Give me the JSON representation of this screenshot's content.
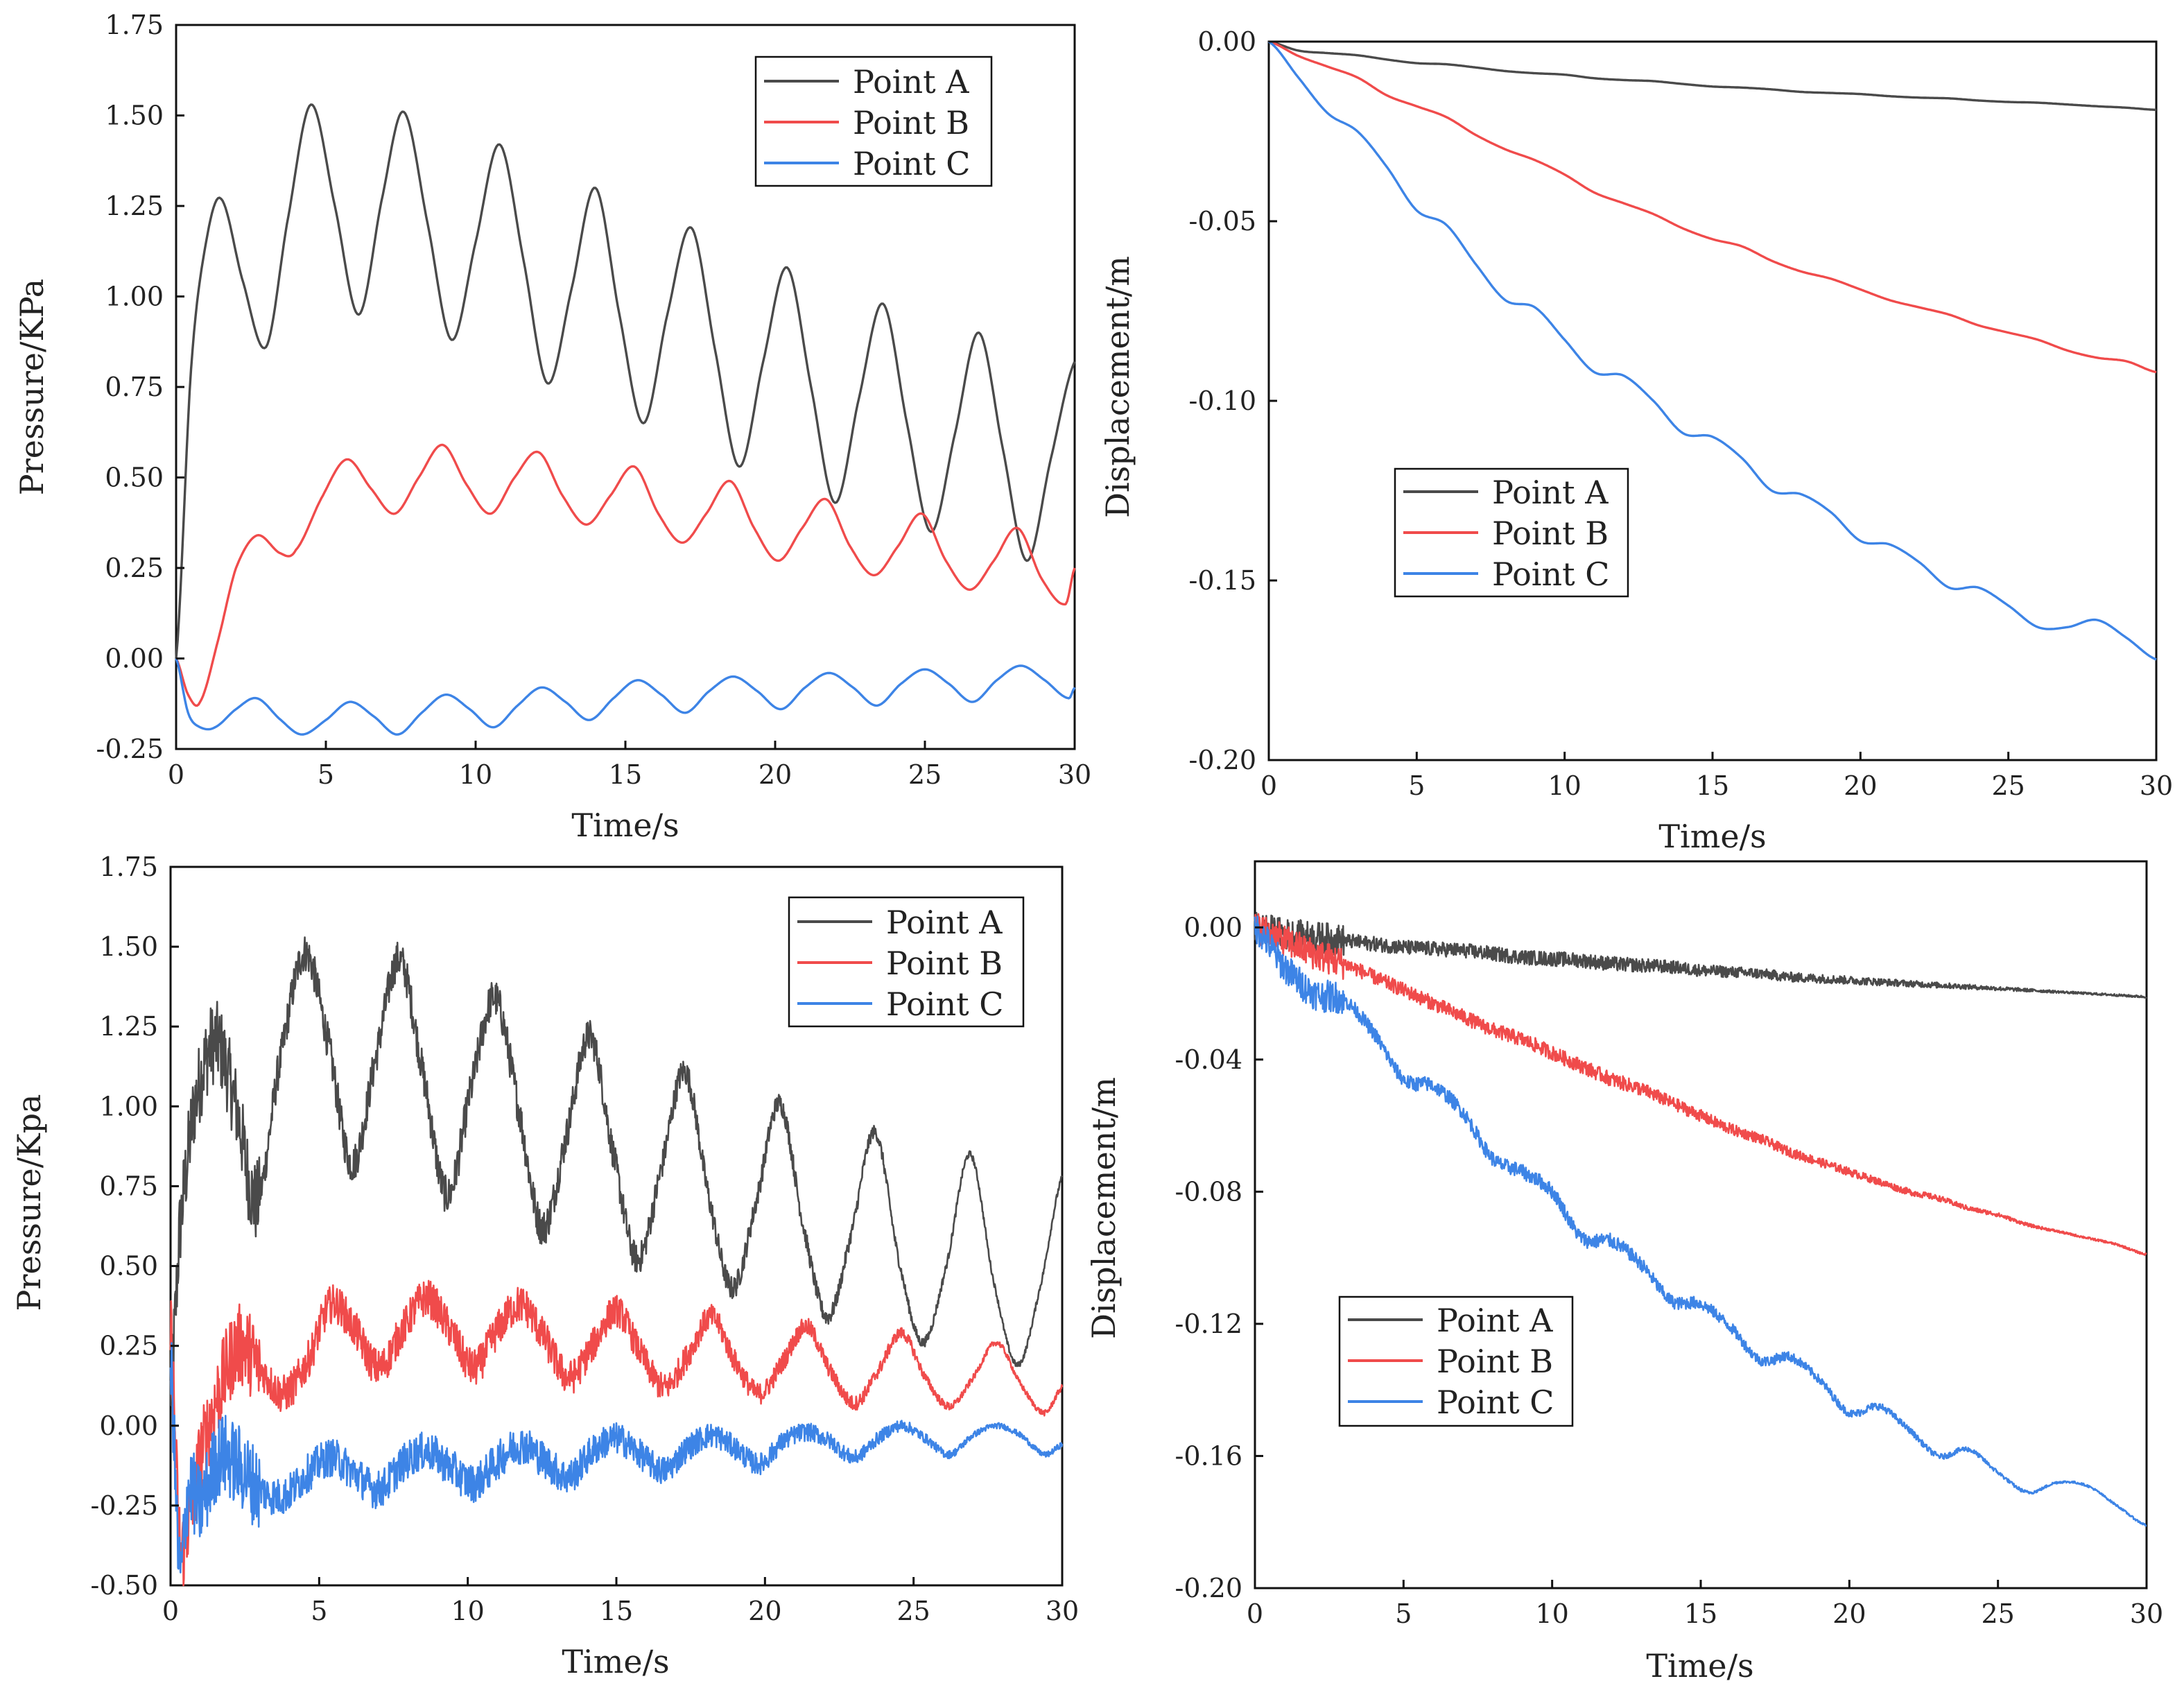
{
  "colors": {
    "series_a": "#4a4a4a",
    "series_b": "#f04b4b",
    "series_c": "#3d84e6",
    "axis": "#111111"
  },
  "chart_data": [
    {
      "id": "top-left",
      "type": "line",
      "xlabel": "Time/s",
      "ylabel": "Pressure/KPa",
      "xlim": [
        0,
        30
      ],
      "ylim": [
        -0.25,
        1.75
      ],
      "xticks": [
        "0",
        "5",
        "10",
        "15",
        "20",
        "25",
        "30"
      ],
      "yticks": [
        "-0.25",
        "0.00",
        "0.25",
        "0.50",
        "0.75",
        "1.00",
        "1.25",
        "1.50",
        "1.75"
      ],
      "legend_position": "top-right",
      "noise": 0,
      "series": [
        {
          "name": "Point A",
          "color": "#4a4a4a",
          "x": [
            0,
            0.5,
            1.0,
            1.5,
            2.2,
            3.0,
            3.7,
            4.5,
            5.3,
            6.1,
            6.9,
            7.6,
            8.4,
            9.2,
            10.0,
            10.8,
            11.6,
            12.4,
            13.2,
            14.0,
            14.8,
            15.6,
            16.4,
            17.2,
            18.0,
            18.8,
            19.6,
            20.4,
            21.2,
            22.0,
            22.8,
            23.6,
            24.4,
            25.2,
            26.0,
            26.8,
            27.6,
            28.4,
            29.2,
            30.0
          ],
          "y": [
            0.0,
            0.8,
            1.15,
            1.27,
            1.05,
            0.86,
            1.2,
            1.53,
            1.25,
            0.95,
            1.28,
            1.51,
            1.2,
            0.88,
            1.15,
            1.42,
            1.1,
            0.76,
            1.02,
            1.3,
            0.95,
            0.65,
            0.95,
            1.19,
            0.85,
            0.53,
            0.82,
            1.08,
            0.75,
            0.43,
            0.72,
            0.98,
            0.65,
            0.35,
            0.62,
            0.9,
            0.58,
            0.27,
            0.55,
            0.82
          ]
        },
        {
          "name": "Point B",
          "color": "#f04b4b",
          "x": [
            0,
            0.4,
            0.8,
            1.4,
            2.0,
            2.7,
            3.5,
            4.0,
            4.9,
            5.7,
            6.5,
            7.3,
            8.1,
            8.9,
            9.7,
            10.5,
            11.3,
            12.1,
            12.9,
            13.7,
            14.5,
            15.3,
            16.1,
            16.9,
            17.7,
            18.5,
            19.3,
            20.1,
            20.9,
            21.7,
            22.5,
            23.3,
            24.1,
            24.9,
            25.7,
            26.5,
            27.3,
            28.1,
            28.9,
            29.7,
            30.0
          ],
          "y": [
            0.0,
            -0.1,
            -0.12,
            0.05,
            0.25,
            0.34,
            0.29,
            0.3,
            0.45,
            0.55,
            0.47,
            0.4,
            0.5,
            0.59,
            0.48,
            0.4,
            0.5,
            0.57,
            0.45,
            0.37,
            0.45,
            0.53,
            0.4,
            0.32,
            0.4,
            0.49,
            0.36,
            0.27,
            0.36,
            0.44,
            0.31,
            0.23,
            0.31,
            0.4,
            0.27,
            0.19,
            0.27,
            0.36,
            0.22,
            0.15,
            0.25
          ]
        },
        {
          "name": "Point C",
          "color": "#3d84e6",
          "x": [
            0,
            0.4,
            0.8,
            1.3,
            2.0,
            2.7,
            3.5,
            4.2,
            5.0,
            5.8,
            6.6,
            7.4,
            8.2,
            9.0,
            9.8,
            10.6,
            11.4,
            12.2,
            13.0,
            13.8,
            14.6,
            15.4,
            16.2,
            17.0,
            17.8,
            18.6,
            19.4,
            20.2,
            21.0,
            21.8,
            22.6,
            23.4,
            24.2,
            25.0,
            25.8,
            26.6,
            27.4,
            28.2,
            29.0,
            29.8,
            30.0
          ],
          "y": [
            0.0,
            -0.15,
            -0.19,
            -0.19,
            -0.14,
            -0.11,
            -0.17,
            -0.21,
            -0.17,
            -0.12,
            -0.16,
            -0.21,
            -0.15,
            -0.1,
            -0.14,
            -0.19,
            -0.13,
            -0.08,
            -0.12,
            -0.17,
            -0.11,
            -0.06,
            -0.1,
            -0.15,
            -0.09,
            -0.05,
            -0.09,
            -0.14,
            -0.08,
            -0.04,
            -0.08,
            -0.13,
            -0.07,
            -0.03,
            -0.07,
            -0.12,
            -0.06,
            -0.02,
            -0.06,
            -0.11,
            -0.08
          ]
        }
      ]
    },
    {
      "id": "top-right",
      "type": "line",
      "xlabel": "Time/s",
      "ylabel": "Displacement/m",
      "xlim": [
        0,
        30
      ],
      "ylim": [
        -0.2,
        0.0
      ],
      "xticks": [
        "0",
        "5",
        "10",
        "15",
        "20",
        "25",
        "30"
      ],
      "yticks": [
        "-0.20",
        "-0.15",
        "-0.10",
        "-0.05",
        "0.00"
      ],
      "legend_position": "center-left",
      "noise": 0,
      "series": [
        {
          "name": "Point A",
          "color": "#4a4a4a",
          "x": [
            0,
            1,
            2,
            3,
            4,
            5,
            6,
            7,
            8,
            9,
            10,
            11,
            12,
            13,
            14,
            15,
            16,
            17,
            18,
            19,
            20,
            21,
            22,
            23,
            24,
            25,
            26,
            27,
            28,
            29,
            30
          ],
          "y": [
            0.0,
            -0.0025,
            -0.0032,
            -0.0038,
            -0.005,
            -0.006,
            -0.0063,
            -0.0072,
            -0.0082,
            -0.0088,
            -0.0092,
            -0.0102,
            -0.0107,
            -0.011,
            -0.0118,
            -0.0125,
            -0.0128,
            -0.0133,
            -0.014,
            -0.0143,
            -0.0146,
            -0.0152,
            -0.0156,
            -0.0158,
            -0.0164,
            -0.0168,
            -0.017,
            -0.0175,
            -0.018,
            -0.0184,
            -0.019
          ]
        },
        {
          "name": "Point B",
          "color": "#f04b4b",
          "x": [
            0,
            1,
            2,
            3,
            4,
            5,
            6,
            7,
            8,
            9,
            10,
            11,
            12,
            13,
            14,
            15,
            16,
            17,
            18,
            19,
            20,
            21,
            22,
            23,
            24,
            25,
            26,
            27,
            28,
            29,
            30
          ],
          "y": [
            0.0,
            -0.004,
            -0.007,
            -0.01,
            -0.015,
            -0.018,
            -0.021,
            -0.026,
            -0.03,
            -0.033,
            -0.037,
            -0.042,
            -0.045,
            -0.048,
            -0.052,
            -0.055,
            -0.057,
            -0.061,
            -0.064,
            -0.066,
            -0.069,
            -0.072,
            -0.074,
            -0.076,
            -0.079,
            -0.081,
            -0.083,
            -0.086,
            -0.088,
            -0.089,
            -0.092
          ]
        },
        {
          "name": "Point C",
          "color": "#3d84e6",
          "x": [
            0,
            1,
            2,
            3,
            4,
            5,
            6,
            7,
            8,
            9,
            10,
            11,
            12,
            13,
            14,
            15,
            16,
            17,
            18,
            19,
            20,
            21,
            22,
            23,
            24,
            25,
            26,
            27,
            28,
            29,
            30
          ],
          "y": [
            0.0,
            -0.01,
            -0.02,
            -0.025,
            -0.035,
            -0.047,
            -0.051,
            -0.062,
            -0.072,
            -0.074,
            -0.083,
            -0.092,
            -0.093,
            -0.1,
            -0.109,
            -0.11,
            -0.116,
            -0.125,
            -0.126,
            -0.131,
            -0.139,
            -0.14,
            -0.145,
            -0.152,
            -0.152,
            -0.157,
            -0.163,
            -0.163,
            -0.161,
            -0.166,
            -0.172
          ]
        }
      ]
    },
    {
      "id": "bottom-left",
      "type": "line",
      "xlabel": "Time/s",
      "ylabel": "Pressure/Kpa",
      "xlim": [
        0,
        30
      ],
      "ylim": [
        -0.5,
        1.75
      ],
      "xticks": [
        "0",
        "5",
        "10",
        "15",
        "20",
        "25",
        "30"
      ],
      "yticks": [
        "-0.50",
        "-0.25",
        "0.00",
        "0.25",
        "0.50",
        "0.75",
        "1.00",
        "1.25",
        "1.50",
        "1.75"
      ],
      "legend_position": "top-right",
      "noise": 0.06,
      "series": [
        {
          "name": "Point A",
          "color": "#4a4a4a",
          "x": [
            0,
            0.3,
            0.8,
            1.5,
            2.2,
            2.9,
            3.6,
            4.5,
            5.3,
            6.1,
            6.9,
            7.7,
            8.5,
            9.3,
            10.1,
            10.9,
            11.7,
            12.5,
            13.3,
            14.1,
            14.9,
            15.7,
            16.5,
            17.3,
            18.1,
            18.9,
            19.7,
            20.5,
            21.3,
            22.1,
            22.9,
            23.7,
            24.5,
            25.3,
            26.1,
            26.9,
            27.7,
            28.5,
            29.3,
            30.0
          ],
          "y": [
            0.1,
            0.6,
            1.0,
            1.2,
            1.0,
            0.7,
            1.1,
            1.48,
            1.2,
            0.82,
            1.15,
            1.46,
            1.1,
            0.72,
            1.05,
            1.34,
            1.0,
            0.62,
            0.9,
            1.22,
            0.85,
            0.52,
            0.8,
            1.11,
            0.72,
            0.43,
            0.7,
            1.01,
            0.62,
            0.34,
            0.6,
            0.92,
            0.52,
            0.26,
            0.5,
            0.85,
            0.45,
            0.19,
            0.45,
            0.78
          ]
        },
        {
          "name": "Point B",
          "color": "#f04b4b",
          "x": [
            0,
            0.3,
            0.6,
            1.0,
            1.6,
            2.3,
            3.0,
            3.8,
            4.6,
            5.4,
            6.2,
            7.0,
            7.8,
            8.6,
            9.4,
            10.2,
            11.0,
            11.8,
            12.6,
            13.4,
            14.2,
            15.0,
            15.8,
            16.6,
            17.4,
            18.2,
            19.0,
            19.8,
            20.6,
            21.4,
            22.2,
            23.0,
            23.8,
            24.6,
            25.4,
            26.2,
            27.0,
            27.8,
            28.6,
            29.4,
            30.0
          ],
          "y": [
            0.3,
            -0.35,
            -0.3,
            -0.1,
            0.1,
            0.25,
            0.18,
            0.1,
            0.2,
            0.38,
            0.3,
            0.18,
            0.3,
            0.4,
            0.3,
            0.18,
            0.3,
            0.38,
            0.27,
            0.15,
            0.25,
            0.36,
            0.23,
            0.12,
            0.22,
            0.34,
            0.2,
            0.1,
            0.2,
            0.31,
            0.17,
            0.07,
            0.17,
            0.29,
            0.15,
            0.06,
            0.15,
            0.26,
            0.13,
            0.04,
            0.12
          ]
        },
        {
          "name": "Point C",
          "color": "#3d84e6",
          "x": [
            0,
            0.3,
            0.6,
            1.0,
            1.6,
            2.2,
            3.0,
            3.8,
            4.6,
            5.4,
            6.2,
            7.0,
            7.8,
            8.6,
            9.4,
            10.2,
            11.0,
            11.8,
            12.6,
            13.4,
            14.2,
            15.0,
            15.8,
            16.6,
            17.4,
            18.2,
            19.0,
            19.8,
            20.6,
            21.4,
            22.2,
            23.0,
            23.8,
            24.6,
            25.4,
            26.2,
            27.0,
            27.8,
            28.6,
            29.4,
            30.0
          ],
          "y": [
            0.2,
            -0.45,
            -0.2,
            -0.25,
            -0.1,
            -0.12,
            -0.2,
            -0.22,
            -0.15,
            -0.1,
            -0.15,
            -0.2,
            -0.12,
            -0.08,
            -0.13,
            -0.18,
            -0.11,
            -0.06,
            -0.11,
            -0.16,
            -0.08,
            -0.04,
            -0.09,
            -0.14,
            -0.07,
            -0.03,
            -0.07,
            -0.12,
            -0.05,
            -0.02,
            -0.05,
            -0.1,
            -0.04,
            0.0,
            -0.04,
            -0.09,
            -0.03,
            0.0,
            -0.03,
            -0.09,
            -0.06
          ]
        }
      ]
    },
    {
      "id": "bottom-right",
      "type": "line",
      "xlabel": "Time/s",
      "ylabel": "Displacement/m",
      "xlim": [
        0,
        30
      ],
      "ylim": [
        -0.2,
        0.02
      ],
      "xticks": [
        "0",
        "5",
        "10",
        "15",
        "20",
        "25",
        "30"
      ],
      "yticks": [
        "-0.20",
        "-0.16",
        "-0.12",
        "-0.08",
        "-0.04",
        "0.00"
      ],
      "legend_position": "center-left",
      "noise": 0.0022,
      "series": [
        {
          "name": "Point A",
          "color": "#4a4a4a",
          "x": [
            0,
            1,
            2,
            3,
            4,
            5,
            6,
            7,
            8,
            9,
            10,
            11,
            12,
            13,
            14,
            15,
            16,
            17,
            18,
            19,
            20,
            21,
            22,
            23,
            24,
            25,
            26,
            27,
            28,
            29,
            30
          ],
          "y": [
            0.0,
            -0.002,
            -0.003,
            -0.004,
            -0.005,
            -0.006,
            -0.0065,
            -0.007,
            -0.008,
            -0.009,
            -0.0095,
            -0.01,
            -0.011,
            -0.0115,
            -0.012,
            -0.013,
            -0.0135,
            -0.014,
            -0.015,
            -0.0155,
            -0.016,
            -0.0165,
            -0.017,
            -0.0175,
            -0.018,
            -0.0185,
            -0.019,
            -0.0195,
            -0.02,
            -0.0205,
            -0.021
          ]
        },
        {
          "name": "Point B",
          "color": "#f04b4b",
          "x": [
            0,
            1,
            2,
            3,
            4,
            5,
            6,
            7,
            8,
            9,
            10,
            11,
            12,
            13,
            14,
            15,
            16,
            17,
            18,
            19,
            20,
            21,
            22,
            23,
            24,
            25,
            26,
            27,
            28,
            29,
            30
          ],
          "y": [
            0.0,
            -0.004,
            -0.008,
            -0.011,
            -0.015,
            -0.019,
            -0.023,
            -0.027,
            -0.031,
            -0.034,
            -0.038,
            -0.042,
            -0.046,
            -0.049,
            -0.053,
            -0.057,
            -0.061,
            -0.064,
            -0.068,
            -0.071,
            -0.074,
            -0.077,
            -0.08,
            -0.082,
            -0.085,
            -0.087,
            -0.09,
            -0.092,
            -0.094,
            -0.096,
            -0.099
          ]
        },
        {
          "name": "Point C",
          "color": "#3d84e6",
          "x": [
            0,
            1,
            2,
            3,
            4,
            5,
            6,
            7,
            8,
            9,
            10,
            11,
            12,
            13,
            14,
            15,
            16,
            17,
            18,
            19,
            20,
            21,
            22,
            23,
            24,
            25,
            26,
            27,
            28,
            29,
            30
          ],
          "y": [
            0.0,
            -0.012,
            -0.02,
            -0.022,
            -0.032,
            -0.046,
            -0.048,
            -0.056,
            -0.07,
            -0.074,
            -0.08,
            -0.094,
            -0.095,
            -0.102,
            -0.113,
            -0.114,
            -0.121,
            -0.131,
            -0.13,
            -0.137,
            -0.147,
            -0.145,
            -0.152,
            -0.16,
            -0.158,
            -0.165,
            -0.171,
            -0.168,
            -0.169,
            -0.175,
            -0.181
          ]
        }
      ]
    }
  ]
}
